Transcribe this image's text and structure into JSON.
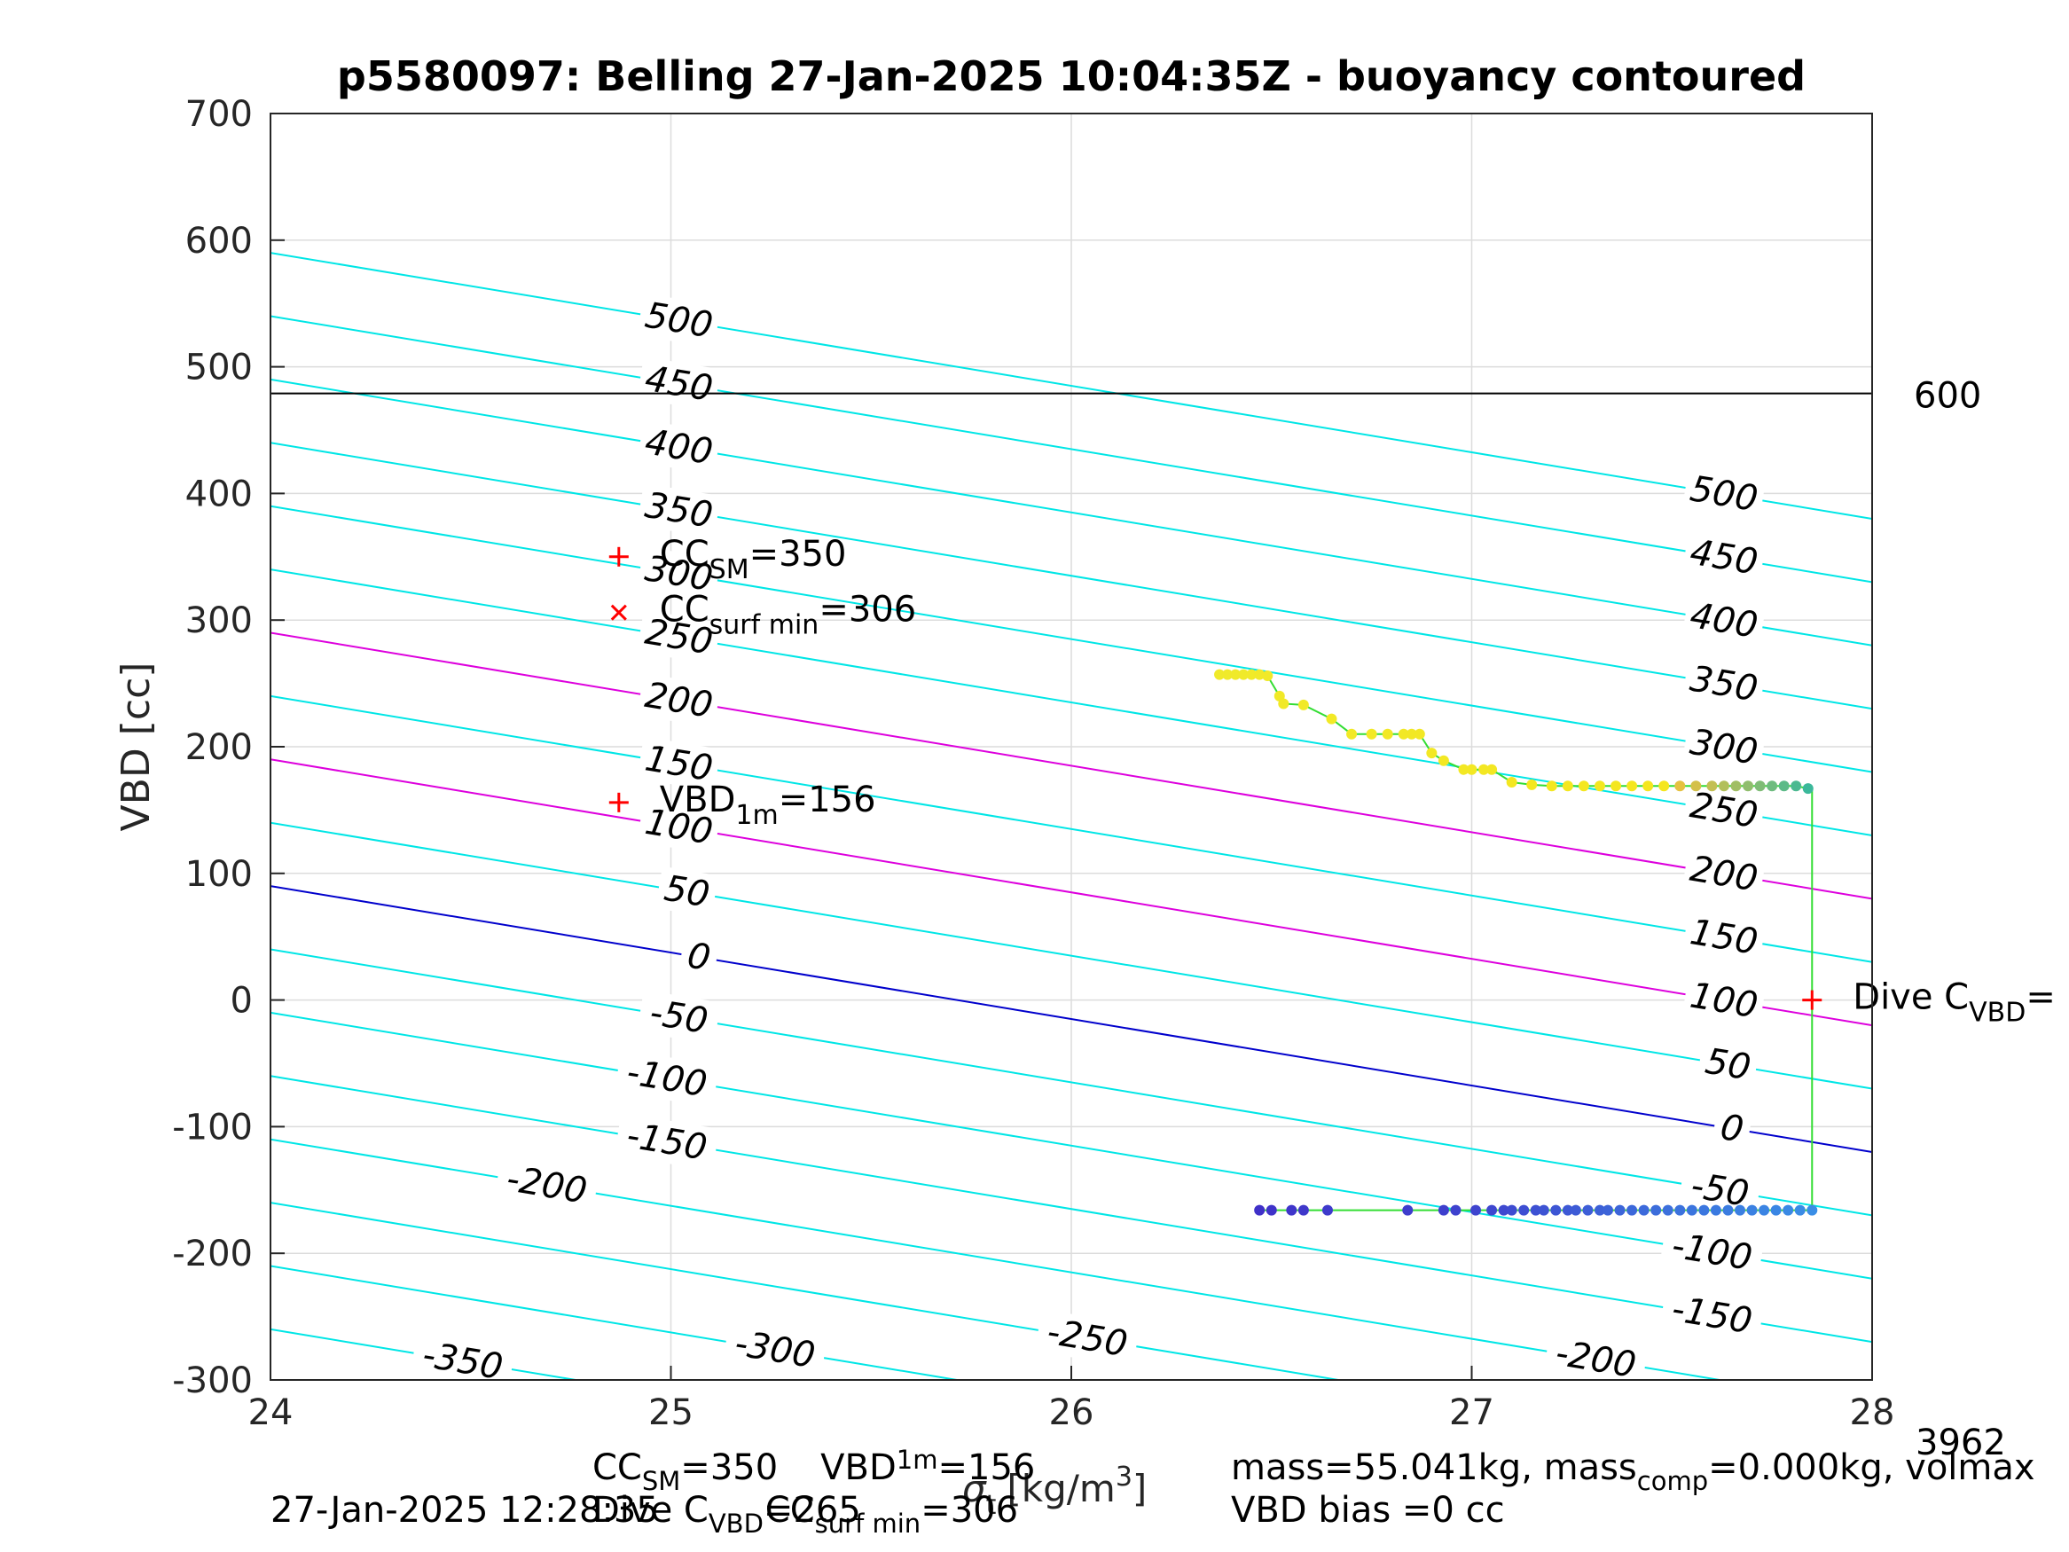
{
  "chart_data": {
    "type": "scatter",
    "title": "p5580097: Belling 27-Jan-2025 10:04:35Z - buoyancy contoured",
    "ylabel": "VBD [cc]",
    "xlabel": {
      "main": "σ",
      "sub": "t",
      "units": "[kg/m",
      "sup": "3",
      "close": "]"
    },
    "xlim": [
      24,
      28
    ],
    "ylim": [
      -300,
      700
    ],
    "x_ticks": [
      "24",
      "25",
      "26",
      "27",
      "28"
    ],
    "y_ticks": [
      "-300",
      "-200",
      "-100",
      "0",
      "100",
      "200",
      "300",
      "400",
      "500",
      "600",
      "700"
    ],
    "grid": true,
    "contours": {
      "levels": [
        -350,
        -300,
        -250,
        -200,
        -150,
        -100,
        -50,
        0,
        50,
        100,
        150,
        200,
        250,
        300,
        350,
        400,
        450,
        500
      ],
      "vbd_intercept_at_x24": 90,
      "slope_cc_per_sigma": -52.5,
      "colors": {
        "default": "#00e6e6",
        "zero": "#0000cc",
        "highlight": "#dd00dd"
      },
      "highlight_levels": [
        100,
        200
      ],
      "left_labels": [
        {
          "level": 500,
          "text": "500",
          "x": 25.02
        },
        {
          "level": 450,
          "text": "450",
          "x": 25.02
        },
        {
          "level": 400,
          "text": "400",
          "x": 25.02
        },
        {
          "level": 350,
          "text": "350",
          "x": 25.02
        },
        {
          "level": 300,
          "text": "300",
          "x": 25.02
        },
        {
          "level": 250,
          "text": "250",
          "x": 25.02
        },
        {
          "level": 200,
          "text": "200",
          "x": 25.02
        },
        {
          "level": 150,
          "text": "150",
          "x": 25.02
        },
        {
          "level": 100,
          "text": "100",
          "x": 25.02
        },
        {
          "level": 50,
          "text": "50",
          "x": 25.04
        },
        {
          "level": 0,
          "text": "0",
          "x": 25.07
        },
        {
          "level": -50,
          "text": "-50",
          "x": 25.02
        },
        {
          "level": -100,
          "text": "-100",
          "x": 24.99
        },
        {
          "level": -150,
          "text": "-150",
          "x": 24.99
        },
        {
          "level": -200,
          "text": "-200",
          "x": 24.69
        },
        {
          "level": -250,
          "text": "-250",
          "x": 26.04
        },
        {
          "level": -300,
          "text": "-300",
          "x": 25.26
        },
        {
          "level": -350,
          "text": "-350",
          "x": 24.48
        }
      ],
      "right_labels": [
        {
          "level": 500,
          "text": "500",
          "x": 27.63
        },
        {
          "level": 450,
          "text": "450",
          "x": 27.63
        },
        {
          "level": 400,
          "text": "400",
          "x": 27.63
        },
        {
          "level": 350,
          "text": "350",
          "x": 27.63
        },
        {
          "level": 300,
          "text": "300",
          "x": 27.63
        },
        {
          "level": 250,
          "text": "250",
          "x": 27.63
        },
        {
          "level": 200,
          "text": "200",
          "x": 27.63
        },
        {
          "level": 150,
          "text": "150",
          "x": 27.63
        },
        {
          "level": 100,
          "text": "100",
          "x": 27.63
        },
        {
          "level": 50,
          "text": "50",
          "x": 27.64
        },
        {
          "level": 0,
          "text": "0",
          "x": 27.65
        },
        {
          "level": -50,
          "text": "-50",
          "x": 27.62
        },
        {
          "level": -100,
          "text": "-100",
          "x": 27.6
        },
        {
          "level": -150,
          "text": "-150",
          "x": 27.6
        },
        {
          "level": -200,
          "text": "-200",
          "x": 27.31
        }
      ]
    },
    "reference_line": {
      "y": 479,
      "color": "#000000",
      "label": "600"
    },
    "markers": [
      {
        "x": 24.87,
        "y": 350,
        "symbol": "+",
        "color": "#ff0000",
        "label": "CC",
        "sub": "SM",
        "value": "=350"
      },
      {
        "x": 24.87,
        "y": 306,
        "symbol": "x",
        "color": "#ff0000",
        "label": "CC",
        "sub": "surf min",
        "value": "=306"
      },
      {
        "x": 24.87,
        "y": 156,
        "symbol": "+",
        "color": "#ff0000",
        "label": "VBD",
        "sub": "1m",
        "value": "=156"
      },
      {
        "x": 27.85,
        "y": 0,
        "symbol": "+",
        "color": "#ff0000",
        "label": "Dive C",
        "sub": "VBD",
        "value": "="
      }
    ],
    "series": [
      {
        "points": [
          [
            26.37,
            257
          ],
          [
            26.39,
            257
          ],
          [
            26.41,
            257
          ],
          [
            26.43,
            257
          ],
          [
            26.45,
            257
          ],
          [
            26.47,
            257
          ],
          [
            26.49,
            256
          ],
          [
            26.52,
            240
          ],
          [
            26.53,
            234
          ],
          [
            26.58,
            233
          ],
          [
            26.65,
            222
          ],
          [
            26.7,
            210
          ],
          [
            26.75,
            210
          ],
          [
            26.79,
            210
          ],
          [
            26.83,
            210
          ],
          [
            26.85,
            210
          ],
          [
            26.87,
            210
          ],
          [
            26.9,
            195
          ],
          [
            26.93,
            189
          ],
          [
            26.98,
            182
          ],
          [
            27.0,
            182
          ],
          [
            27.03,
            182
          ],
          [
            27.05,
            182
          ],
          [
            27.1,
            172
          ],
          [
            27.15,
            170
          ],
          [
            27.2,
            169
          ],
          [
            27.24,
            169
          ],
          [
            27.28,
            169
          ],
          [
            27.32,
            169
          ],
          [
            27.36,
            169
          ],
          [
            27.4,
            169
          ],
          [
            27.44,
            169
          ],
          [
            27.48,
            169
          ],
          [
            27.52,
            169
          ],
          [
            27.56,
            169
          ],
          [
            27.6,
            169
          ],
          [
            27.63,
            169
          ],
          [
            27.66,
            169
          ],
          [
            27.69,
            169
          ],
          [
            27.72,
            169
          ],
          [
            27.75,
            169
          ],
          [
            27.78,
            169
          ],
          [
            27.81,
            169
          ],
          [
            27.84,
            167
          ]
        ]
      },
      {
        "points": [
          [
            26.47,
            -166
          ],
          [
            26.5,
            -166
          ],
          [
            26.55,
            -166
          ],
          [
            26.58,
            -166
          ],
          [
            26.64,
            -166
          ],
          [
            26.84,
            -166
          ],
          [
            26.93,
            -166
          ],
          [
            26.96,
            -166
          ],
          [
            27.01,
            -166
          ],
          [
            27.05,
            -166
          ],
          [
            27.08,
            -166
          ],
          [
            27.1,
            -166
          ],
          [
            27.13,
            -166
          ],
          [
            27.16,
            -166
          ],
          [
            27.18,
            -166
          ],
          [
            27.21,
            -166
          ],
          [
            27.24,
            -166
          ],
          [
            27.26,
            -166
          ],
          [
            27.29,
            -166
          ],
          [
            27.32,
            -166
          ],
          [
            27.34,
            -166
          ],
          [
            27.37,
            -166
          ],
          [
            27.4,
            -166
          ],
          [
            27.43,
            -166
          ],
          [
            27.46,
            -166
          ],
          [
            27.49,
            -166
          ],
          [
            27.52,
            -166
          ],
          [
            27.55,
            -166
          ],
          [
            27.58,
            -166
          ],
          [
            27.61,
            -166
          ],
          [
            27.64,
            -166
          ],
          [
            27.67,
            -166
          ],
          [
            27.7,
            -166
          ],
          [
            27.73,
            -166
          ],
          [
            27.76,
            -166
          ],
          [
            27.79,
            -166
          ],
          [
            27.82,
            -166
          ],
          [
            27.85,
            -166
          ]
        ]
      }
    ],
    "track_line": {
      "color": "#33dd33",
      "x": 27.85,
      "y_top": 167,
      "y_bottom": -166
    },
    "side_note": "3962"
  },
  "footer": {
    "line1_left": {
      "a": "CC",
      "a_sub": "SM",
      "a_val": "=350",
      "b": "VBD",
      "b_sub": "1m",
      "b_val": "=156"
    },
    "line2_left": {
      "a": "Dive C",
      "a_sub": "VBD",
      "a_val": "=265",
      "b": "CC",
      "b_sub": "surf min",
      "b_val": "=306"
    },
    "timestamp": "27-Jan-2025 12:28:35",
    "right1": {
      "a": "mass=55.041kg, mass",
      "a_sub": "comp",
      "a_val": "=0.000kg, volmax"
    },
    "right2": "VBD bias =0 cc"
  }
}
